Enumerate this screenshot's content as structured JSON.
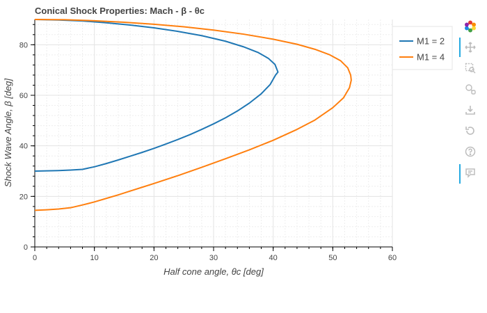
{
  "chart_data": {
    "type": "line",
    "title": "Conical Shock Properties: Mach - β - θc",
    "xlabel": "Half cone angle, θc [deg]",
    "ylabel": "Shock Wave Angle, β [deg]",
    "xlim": [
      0,
      60
    ],
    "ylim": [
      0,
      90
    ],
    "xticks": [
      "0",
      "10",
      "20",
      "30",
      "40",
      "50",
      "60"
    ],
    "yticks": [
      "0",
      "20",
      "40",
      "60",
      "80"
    ],
    "grid": true,
    "legend_position": "top-right",
    "series": [
      {
        "name": "M1 = 2",
        "color": "#1f77b4",
        "points": [
          [
            0,
            30.0
          ],
          [
            2,
            30.1
          ],
          [
            4,
            30.2
          ],
          [
            6,
            30.4
          ],
          [
            8,
            30.7
          ],
          [
            10,
            31.7
          ],
          [
            12,
            33.0
          ],
          [
            14,
            34.4
          ],
          [
            16,
            35.9
          ],
          [
            18,
            37.4
          ],
          [
            20,
            39.0
          ],
          [
            22,
            40.7
          ],
          [
            24,
            42.5
          ],
          [
            26,
            44.4
          ],
          [
            28,
            46.5
          ],
          [
            30,
            48.7
          ],
          [
            32,
            51.1
          ],
          [
            34,
            53.8
          ],
          [
            36,
            56.9
          ],
          [
            38,
            60.6
          ],
          [
            39.5,
            64.3
          ],
          [
            40.4,
            68.0
          ],
          [
            40.8,
            69.2
          ],
          [
            40.3,
            72.2
          ],
          [
            39.2,
            74.6
          ],
          [
            37.5,
            76.9
          ],
          [
            35.0,
            79.2
          ],
          [
            32.0,
            81.4
          ],
          [
            28.0,
            83.6
          ],
          [
            24.0,
            85.3
          ],
          [
            20.0,
            86.7
          ],
          [
            16.0,
            87.8
          ],
          [
            12.0,
            88.7
          ],
          [
            8.0,
            89.4
          ],
          [
            4.0,
            89.8
          ],
          [
            0,
            90.0
          ]
        ]
      },
      {
        "name": "M1 = 4",
        "color": "#ff7f0e",
        "points": [
          [
            0,
            14.5
          ],
          [
            2,
            14.7
          ],
          [
            4,
            15.0
          ],
          [
            6,
            15.5
          ],
          [
            8,
            16.6
          ],
          [
            10,
            17.8
          ],
          [
            12,
            19.2
          ],
          [
            14,
            20.6
          ],
          [
            16,
            22.1
          ],
          [
            18,
            23.6
          ],
          [
            20,
            25.1
          ],
          [
            24,
            28.2
          ],
          [
            28,
            31.5
          ],
          [
            32,
            34.9
          ],
          [
            36,
            38.4
          ],
          [
            40,
            42.2
          ],
          [
            44,
            46.5
          ],
          [
            47,
            50.2
          ],
          [
            50,
            55.1
          ],
          [
            51.8,
            59.0
          ],
          [
            52.8,
            63.0
          ],
          [
            53.1,
            66.0
          ],
          [
            53.0,
            68.0
          ],
          [
            52.5,
            70.9
          ],
          [
            51.3,
            73.7
          ],
          [
            49.5,
            76.0
          ],
          [
            47.0,
            78.2
          ],
          [
            44.0,
            80.2
          ],
          [
            40.0,
            82.2
          ],
          [
            35.0,
            84.2
          ],
          [
            30.0,
            85.8
          ],
          [
            25.0,
            87.1
          ],
          [
            20.0,
            88.1
          ],
          [
            15.0,
            88.9
          ],
          [
            10.0,
            89.5
          ],
          [
            5.0,
            89.9
          ],
          [
            0,
            90.0
          ]
        ]
      }
    ]
  },
  "toolbar": {
    "tools": [
      "bokeh-logo-icon",
      "pan-icon",
      "box-zoom-icon",
      "wheel-zoom-icon",
      "save-icon",
      "reset-icon",
      "help-icon",
      "hover-icon"
    ]
  }
}
